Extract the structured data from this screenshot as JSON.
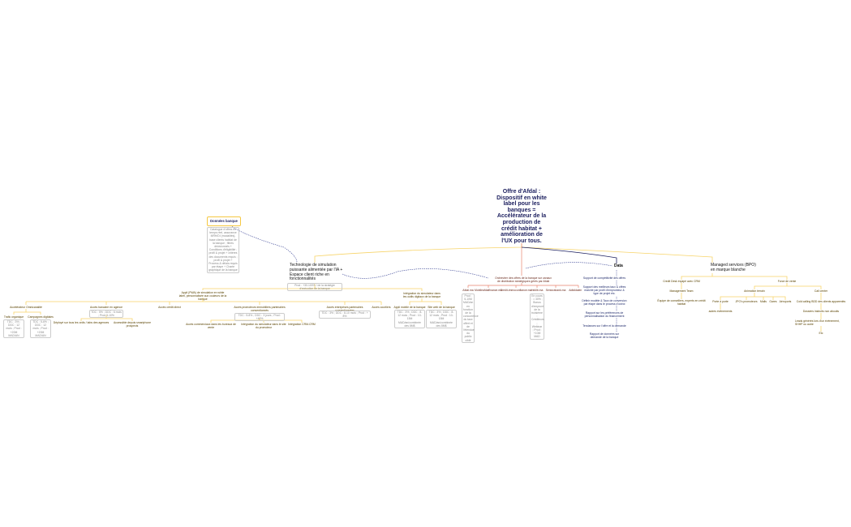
{
  "root": "Offre d'Afdal : Dispositif en white label pour les banques = Accélérateur de la production de crédit habitat + amélioration de l'UX pour tous.",
  "donnees": {
    "title": "Données banque",
    "desc": "Catalogue d'offres en temps réel, assurance MRH/DI (modalités), base clients habitat de la banque ; filtres décisionnels + Conditions d'éligibilité ; profil & projet + critères des documents requis ; profil & projet + Process & délais requis par étape + Charte graphique de la banque"
  },
  "tech": {
    "title": "Technologie de simulation puissante alimentée par l'IA + Espace client riche en fonctionnalités",
    "metric": "Prod : +30-100% / de la stratégie d'exécution de la banque"
  },
  "left": {
    "pwa": "Appli (PWA) de simulation en white label, personnalisée aux couleurs de la banque",
    "integration": "Intégration du simulateur dans les outils digitaux de la banque",
    "omni": "Accélérateur Omnicanalité",
    "trafic": "Trafic organique",
    "trafic_m": "TDC : 3% ; DDC : 12 mois ; Prod : +20M MAD/AN",
    "campagnes": "Campagnes digitales",
    "campagnes_m": "TDC : 5-6% ; DDC : 12 mois ; Prod : +20M MAD/AN",
    "agence": "Accès bancaire en agence",
    "agence_m": "TDC : 5% ; DDC : 6 mois ; Prod 5-10%",
    "deploye": "Déployé sur tous les ordis / tabs des agences",
    "smartphone": "Accessible depuis smartphone prospects",
    "direct": "Accès crédit direct",
    "promoteurs": "Accès promoteurs immobiliers partenaires conventionnés",
    "promoteurs_m": "TDC : 5-8% ; DDC : 3 jours ; Prod : +40%",
    "commerciaux": "Accès commerciaux dans les bureaux de vente",
    "site_promoteur": "Intégration du simulateur dans le site du promoteur",
    "crm": "Intégration CRM-CRM",
    "entreprises": "Accès entreprises partenaires conventionnées",
    "entreprises_m": "TDC : 3% ; DDC : 8-10 mois ; Prod : + 8%",
    "courtiers": "Accès courtiers",
    "appli": "Appli mobile de la banque",
    "appli_m": "TDC : 3% ; DDC : 8-12 mois ; Prod : 10-15M MAD/an/combinée des 8M$",
    "site": "Site web de la banque",
    "site_m": "TDC : 3% ; DDC : 8-12 mois ; Prod : 10-15M MAD/an/combinée des 8M$"
  },
  "middle": {
    "title": "Orchestrer des offres de la banque sur canaux de distribution stratégiques gérés par Afdal",
    "sites": [
      "Afdal.ma",
      "Mobileafdalfinance.ma",
      "Credit-immoconfiance.ma",
      "Infolib.ma",
      "Seniorabank.ma",
      "Adfaldalend.ma"
    ],
    "afdal_m": "Prod : 5-10M MAD/an en fonction de la concurrence du taux offert et de l'étendue du public ciblé",
    "info_m": "En cours : ≈ 30% ; Bonus d'emprunt de la troisième : Créditeurs ; Webinar ; Prod : +10M MAD"
  },
  "data": {
    "title": "Data",
    "items": [
      "Support de compétitivité des offres",
      "Support des meilleurs taux & offres marché par profil d'emprunteur & type de projet etc.",
      "Définir modèle & Taux de conversion par étape dans le process d'octroi",
      "Rapport sur les préférences de personnalisation du financement",
      "Tendances sur l'offre et la demande",
      "Rapport de données sur demande de la banque"
    ]
  },
  "managed": {
    "title": "Managed services (BPO) en marque blanche",
    "desk": "Credit Desk équipé avec CRM",
    "mgmt": "Management Team",
    "equipe": "Équipe de conseillers, experts en crédit habitat",
    "force": "Force de vente",
    "animation": "Animation terrain",
    "call": "Call center",
    "terrain": [
      "Porte à porte",
      "JPO's promoteurs",
      "Malls",
      "Gares",
      "Aéroports"
    ],
    "autres": "autres évènements",
    "callitems": [
      "Cold calling BDD des clients apparentés",
      "Dossiers instruits non aboutis",
      "Leads générés lors d'un évènement, SHHP ou autre",
      "Etc"
    ]
  },
  "colors": {
    "yellow": "#f7d46a",
    "red": "#e9846f",
    "navy": "#1b1e5e",
    "dashed": "#3b4596"
  }
}
